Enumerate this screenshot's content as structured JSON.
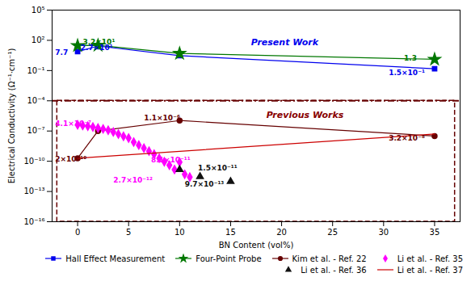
{
  "chart_data": {
    "type": "line",
    "xlabel": "BN Content (vol%)",
    "ylabel": "Electrical Conductivity (Ω⁻¹·cm⁻¹)",
    "log": "y",
    "xlim": [
      -2.5,
      37.5
    ],
    "ylim": [
      1e-16,
      100000.0
    ],
    "xticks": [
      0,
      5,
      10,
      15,
      20,
      25,
      30,
      35
    ],
    "yticks": [
      {
        "value": 1e-16,
        "label": "10⁻¹⁶"
      },
      {
        "value": 1e-13,
        "label": "10⁻¹³"
      },
      {
        "value": 1e-10,
        "label": "10⁻¹⁰"
      },
      {
        "value": 1e-07,
        "label": "10⁻⁷"
      },
      {
        "value": 0.0001,
        "label": "10⁻⁴"
      },
      {
        "value": 0.1,
        "label": "10⁻¹"
      },
      {
        "value": 100.0,
        "label": "10²"
      },
      {
        "value": 100000.0,
        "label": "10⁵"
      }
    ],
    "grid": false,
    "legend": "lower right",
    "series": [
      {
        "name": "Hall Effect Measurement",
        "color": "#0000EE",
        "marker": "square",
        "line_style": "solid",
        "x": [
          0,
          2,
          10,
          35
        ],
        "values": [
          7.7,
          27,
          3.0,
          0.15
        ]
      },
      {
        "name": "Four-Point Probe",
        "color": "#007700",
        "marker": "star",
        "line_style": "solid",
        "x": [
          0,
          2,
          10,
          35
        ],
        "values": [
          30,
          32,
          5.0,
          1.3
        ]
      },
      {
        "name": "Kim et al. - Ref. 22",
        "color": "#660000",
        "marker": "circle",
        "line_style": "solid",
        "x": [
          0,
          2,
          10,
          35
        ],
        "values": [
          2e-10,
          1e-07,
          1.1e-06,
          3.2e-08
        ]
      },
      {
        "name": "Li et al. - Ref. 35",
        "color": "#FF00FF",
        "marker": "diamond",
        "line_style": "none",
        "x": [
          0,
          0.5,
          1,
          1.5,
          2,
          2.5,
          3,
          3.5,
          4,
          4.5,
          5,
          5.5,
          6,
          6.5,
          7,
          7.5,
          8,
          8.5,
          9,
          9.5,
          10,
          10.5,
          11
        ],
        "values": [
          4.1e-07,
          3.5e-07,
          3e-07,
          2.5e-07,
          2e-07,
          1.6e-07,
          1.2e-07,
          8e-08,
          5e-08,
          3e-08,
          2e-08,
          8e-09,
          4e-09,
          2e-09,
          1e-09,
          5e-10,
          2e-10,
          9e-11,
          4e-11,
          1.5e-11,
          8.1e-11,
          5e-12,
          2.7e-12
        ]
      },
      {
        "name": "Li et al. - Ref. 36",
        "color": "#111111",
        "marker": "triangle",
        "line_style": "none",
        "x": [
          10,
          12,
          15
        ],
        "values": [
          1.5e-11,
          3e-12,
          9.7e-13
        ]
      },
      {
        "name": "Li et al. - Ref. 37",
        "color": "#CC0000",
        "marker": "none",
        "line_style": "solid",
        "x": [
          0,
          35
        ],
        "values": [
          2e-10,
          5e-08
        ]
      }
    ],
    "reference_lines": [
      {
        "y": 0.0001,
        "color": "#660000",
        "line_style": "dashdot"
      }
    ],
    "region": {
      "x": [
        -2.0,
        37.0
      ],
      "y": [
        1e-16,
        0.0001
      ],
      "color": "#660000",
      "line_style": "dashed"
    },
    "annotations": [
      {
        "text": "7.7",
        "x": -2.2,
        "y": 6.0,
        "color": "#0000EE"
      },
      {
        "text": "2.7×10¹",
        "x": 0.3,
        "y": 19,
        "color": "#0000EE"
      },
      {
        "text": "1.5×10⁻¹",
        "x": 30.5,
        "y": 0.065,
        "color": "#0000EE"
      },
      {
        "text": "3.2×10¹",
        "x": 0.5,
        "y": 65,
        "color": "#007700"
      },
      {
        "text": "1.3",
        "x": 32.0,
        "y": 1.8,
        "color": "#007700"
      },
      {
        "text": "2×10⁻¹⁰",
        "x": -2.2,
        "y": 1.5e-10,
        "color": "#660000"
      },
      {
        "text": "1.1×10⁻⁶",
        "x": 6.5,
        "y": 1.8e-06,
        "color": "#660000"
      },
      {
        "text": "3.2×10⁻⁸",
        "x": 30.5,
        "y": 1.8e-08,
        "color": "#660000"
      },
      {
        "text": "4.1×10⁻⁷",
        "x": -2.2,
        "y": 5.5e-07,
        "color": "#FF00FF"
      },
      {
        "text": "8.1×10⁻¹¹",
        "x": 7.2,
        "y": 1.3e-10,
        "color": "#FF00FF"
      },
      {
        "text": "2.7×10⁻¹²",
        "x": 3.5,
        "y": 1.2e-12,
        "color": "#FF00FF"
      },
      {
        "text": "1.5×10⁻¹¹",
        "x": 11.8,
        "y": 2.2e-11,
        "color": "#111111"
      },
      {
        "text": "9.7×10⁻¹³",
        "x": 10.5,
        "y": 5e-13,
        "color": "#111111"
      },
      {
        "text": "Present Work",
        "x": 17,
        "y": 60,
        "color": "#0000EE"
      },
      {
        "text": "Previous Works",
        "x": 18.5,
        "y": 4e-06,
        "color": "#880000"
      }
    ]
  }
}
